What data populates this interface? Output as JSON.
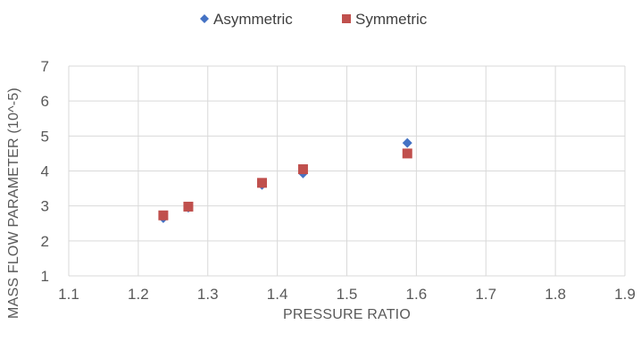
{
  "chart_data": {
    "type": "scatter",
    "title": "",
    "xlabel": "PRESSURE RATIO",
    "ylabel": "MASS FLOW PARAMETER (10^-5)",
    "xlim": [
      1.1,
      1.9
    ],
    "ylim": [
      1,
      7
    ],
    "xticks": [
      "1.1",
      "1.2",
      "1.3",
      "1.4",
      "1.5",
      "1.6",
      "1.7",
      "1.8",
      "1.9"
    ],
    "yticks": [
      "1",
      "2",
      "3",
      "4",
      "5",
      "6",
      "7"
    ],
    "grid": true,
    "legend_position": "top",
    "series": [
      {
        "name": "Asymmetric",
        "marker": "diamond",
        "color": "#4472C4",
        "points": [
          {
            "x": 1.236,
            "y": 2.65
          },
          {
            "x": 1.272,
            "y": 2.95
          },
          {
            "x": 1.378,
            "y": 3.6
          },
          {
            "x": 1.437,
            "y": 3.93
          },
          {
            "x": 1.587,
            "y": 4.8
          }
        ]
      },
      {
        "name": "Symmetric",
        "marker": "square",
        "color": "#C0504D",
        "points": [
          {
            "x": 1.236,
            "y": 2.73
          },
          {
            "x": 1.272,
            "y": 2.98
          },
          {
            "x": 1.378,
            "y": 3.66
          },
          {
            "x": 1.437,
            "y": 4.05
          },
          {
            "x": 1.587,
            "y": 4.5
          }
        ]
      }
    ]
  }
}
